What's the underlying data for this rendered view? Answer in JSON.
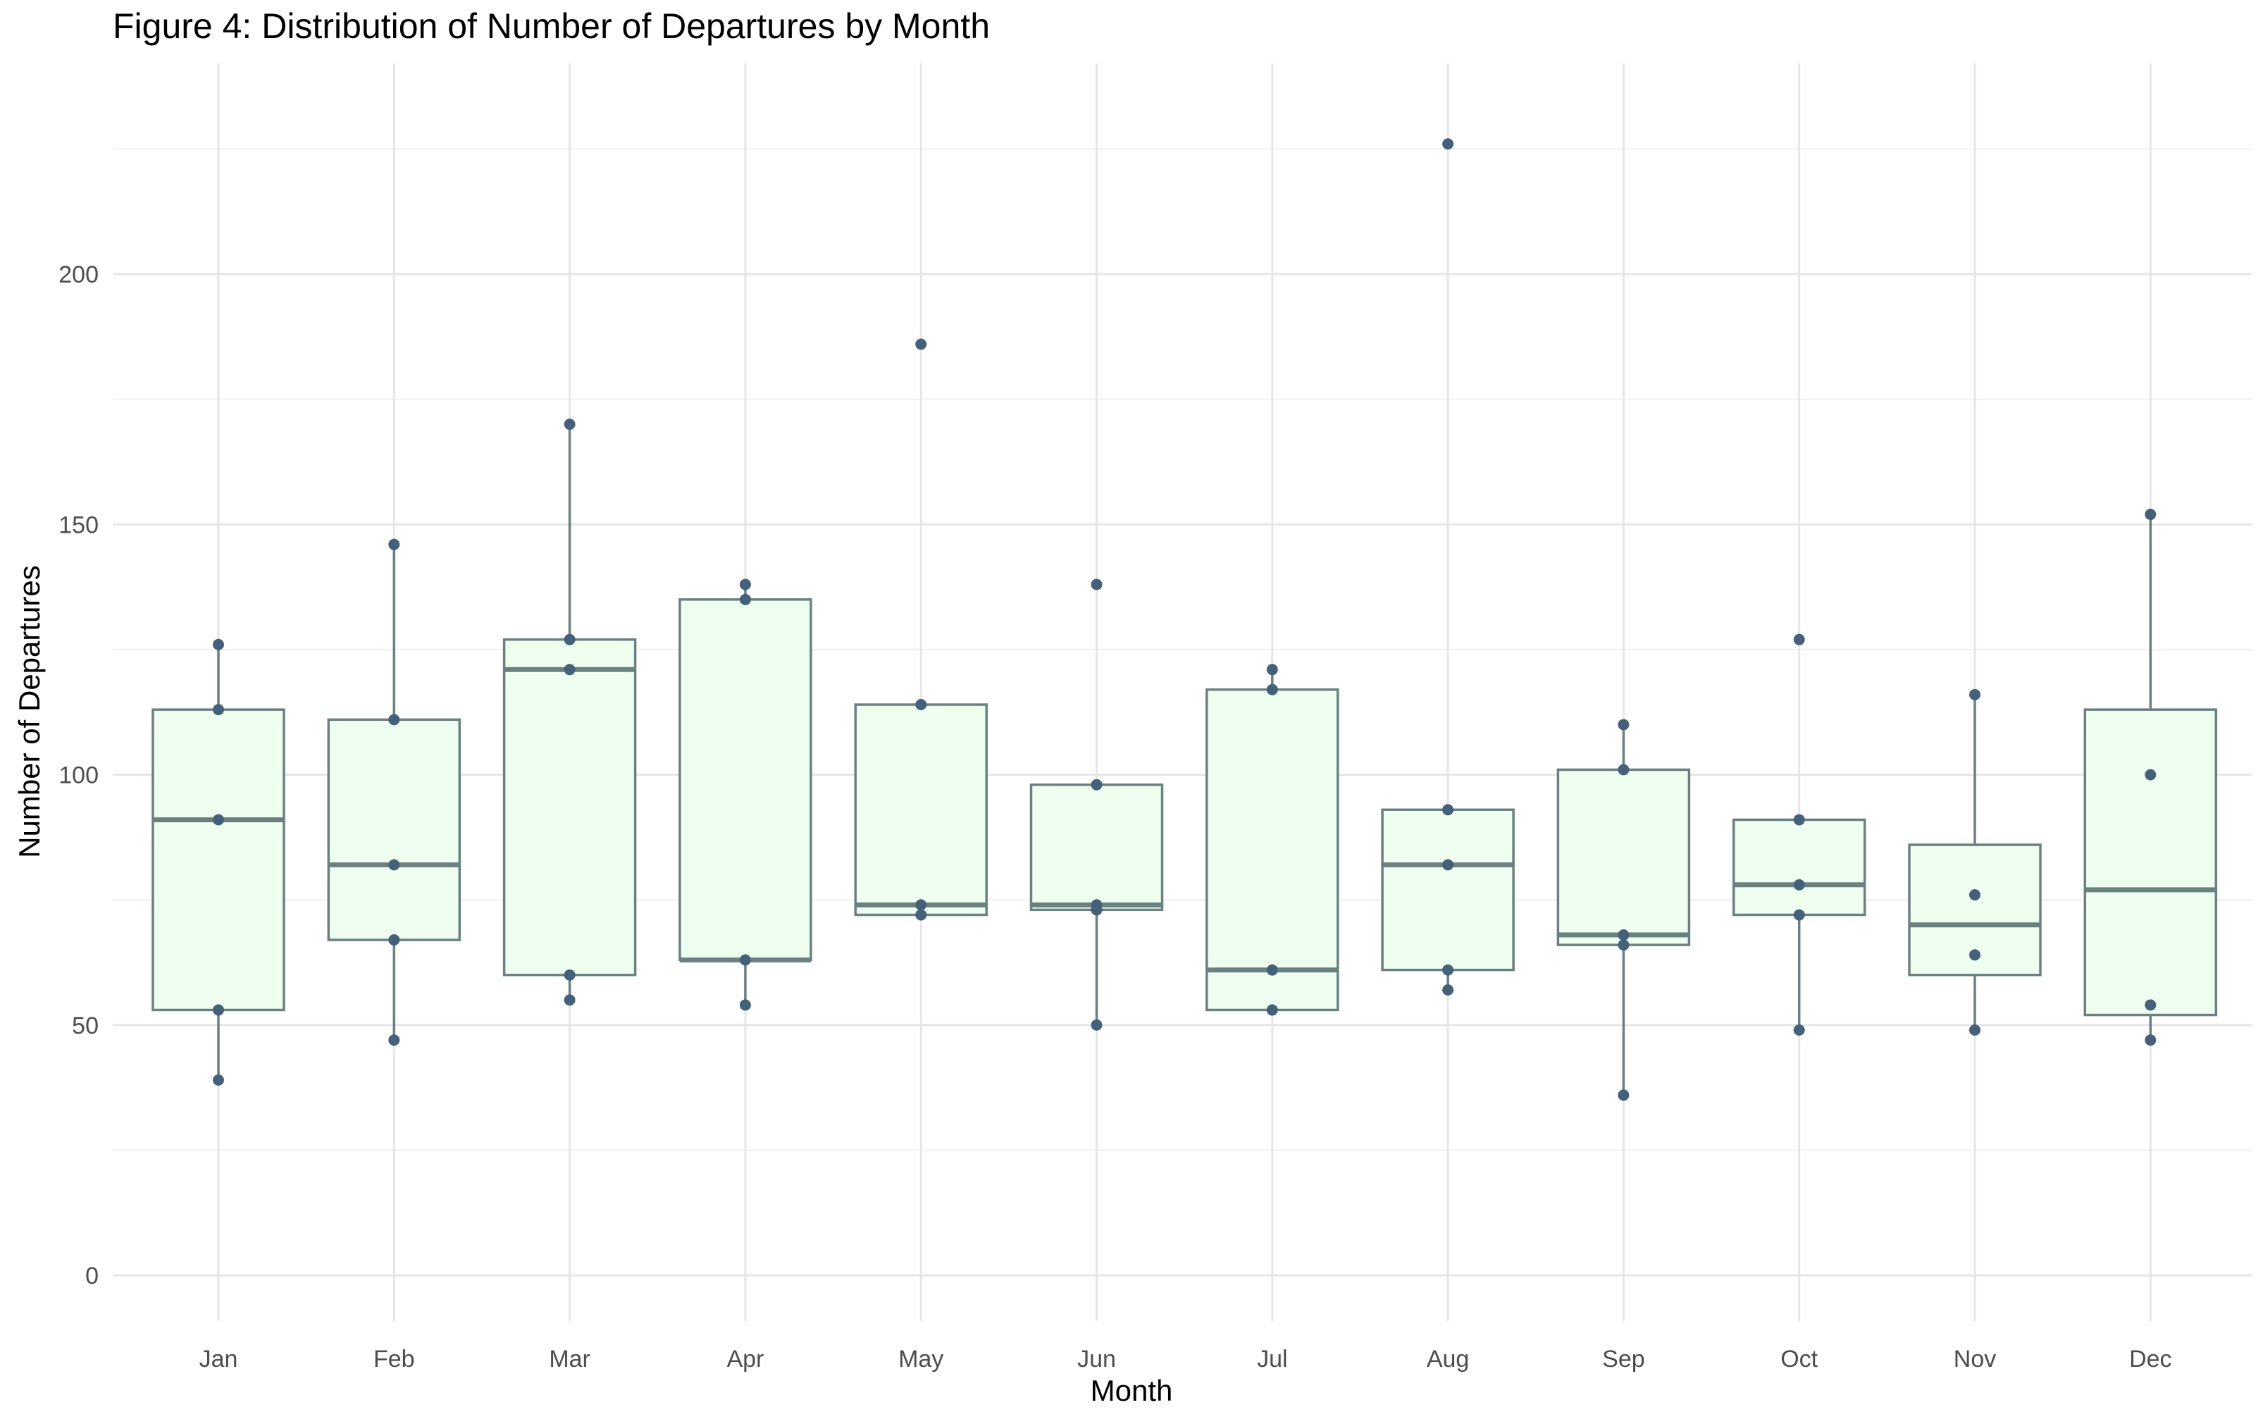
{
  "chart_data": {
    "type": "box",
    "title": "Figure 4: Distribution of Number of Departures by Month",
    "xlabel": "Month",
    "ylabel": "Number of Departures",
    "categories": [
      "Jan",
      "Feb",
      "Mar",
      "Apr",
      "May",
      "Jun",
      "Jul",
      "Aug",
      "Sep",
      "Oct",
      "Nov",
      "Dec"
    ],
    "y_ticks": [
      0,
      50,
      100,
      150,
      200
    ],
    "ylim": [
      -9,
      236
    ],
    "grid": "on",
    "legend": "none",
    "box_fill": "#efffef",
    "box_stroke": "#6b8080",
    "median_color": "#6b8080",
    "point_color": "#44617b",
    "grid_color": "#ebebeb",
    "boxes": [
      {
        "month": "Jan",
        "min": 39,
        "q1": 53,
        "median": 91,
        "q3": 113,
        "max": 126,
        "points": [
          39,
          53,
          91,
          113,
          126
        ]
      },
      {
        "month": "Feb",
        "min": 47,
        "q1": 67,
        "median": 82,
        "q3": 111,
        "max": 146,
        "points": [
          47,
          67,
          82,
          111,
          146
        ]
      },
      {
        "month": "Mar",
        "min": 55,
        "q1": 60,
        "median": 121,
        "q3": 127,
        "max": 170,
        "points": [
          55,
          60,
          121,
          127,
          170
        ]
      },
      {
        "month": "Apr",
        "min": 54,
        "q1": 63,
        "median": 63,
        "q3": 135,
        "max": 138,
        "points": [
          54,
          63,
          135,
          138
        ]
      },
      {
        "month": "May",
        "min": 72,
        "q1": 72,
        "median": 74,
        "q3": 114,
        "max": 114,
        "points": [
          72,
          74,
          114,
          186
        ]
      },
      {
        "month": "Jun",
        "min": 50,
        "q1": 73,
        "median": 74,
        "q3": 98,
        "max": 98,
        "points": [
          50,
          73,
          74,
          98,
          138
        ]
      },
      {
        "month": "Jul",
        "min": 53,
        "q1": 53,
        "median": 61,
        "q3": 117,
        "max": 121,
        "points": [
          53,
          61,
          117,
          121
        ]
      },
      {
        "month": "Aug",
        "min": 57,
        "q1": 61,
        "median": 82,
        "q3": 93,
        "max": 93,
        "points": [
          57,
          61,
          82,
          93,
          226
        ]
      },
      {
        "month": "Sep",
        "min": 36,
        "q1": 66,
        "median": 68,
        "q3": 101,
        "max": 110,
        "points": [
          36,
          66,
          68,
          101,
          110
        ]
      },
      {
        "month": "Oct",
        "min": 49,
        "q1": 72,
        "median": 78,
        "q3": 91,
        "max": 91,
        "points": [
          49,
          72,
          78,
          91,
          127
        ]
      },
      {
        "month": "Nov",
        "min": 49,
        "q1": 60,
        "median": 70,
        "q3": 86,
        "max": 116,
        "points": [
          49,
          64,
          76,
          116
        ]
      },
      {
        "month": "Dec",
        "min": 47,
        "q1": 52,
        "median": 77,
        "q3": 113,
        "max": 152,
        "points": [
          47,
          54,
          100,
          152
        ]
      }
    ]
  }
}
